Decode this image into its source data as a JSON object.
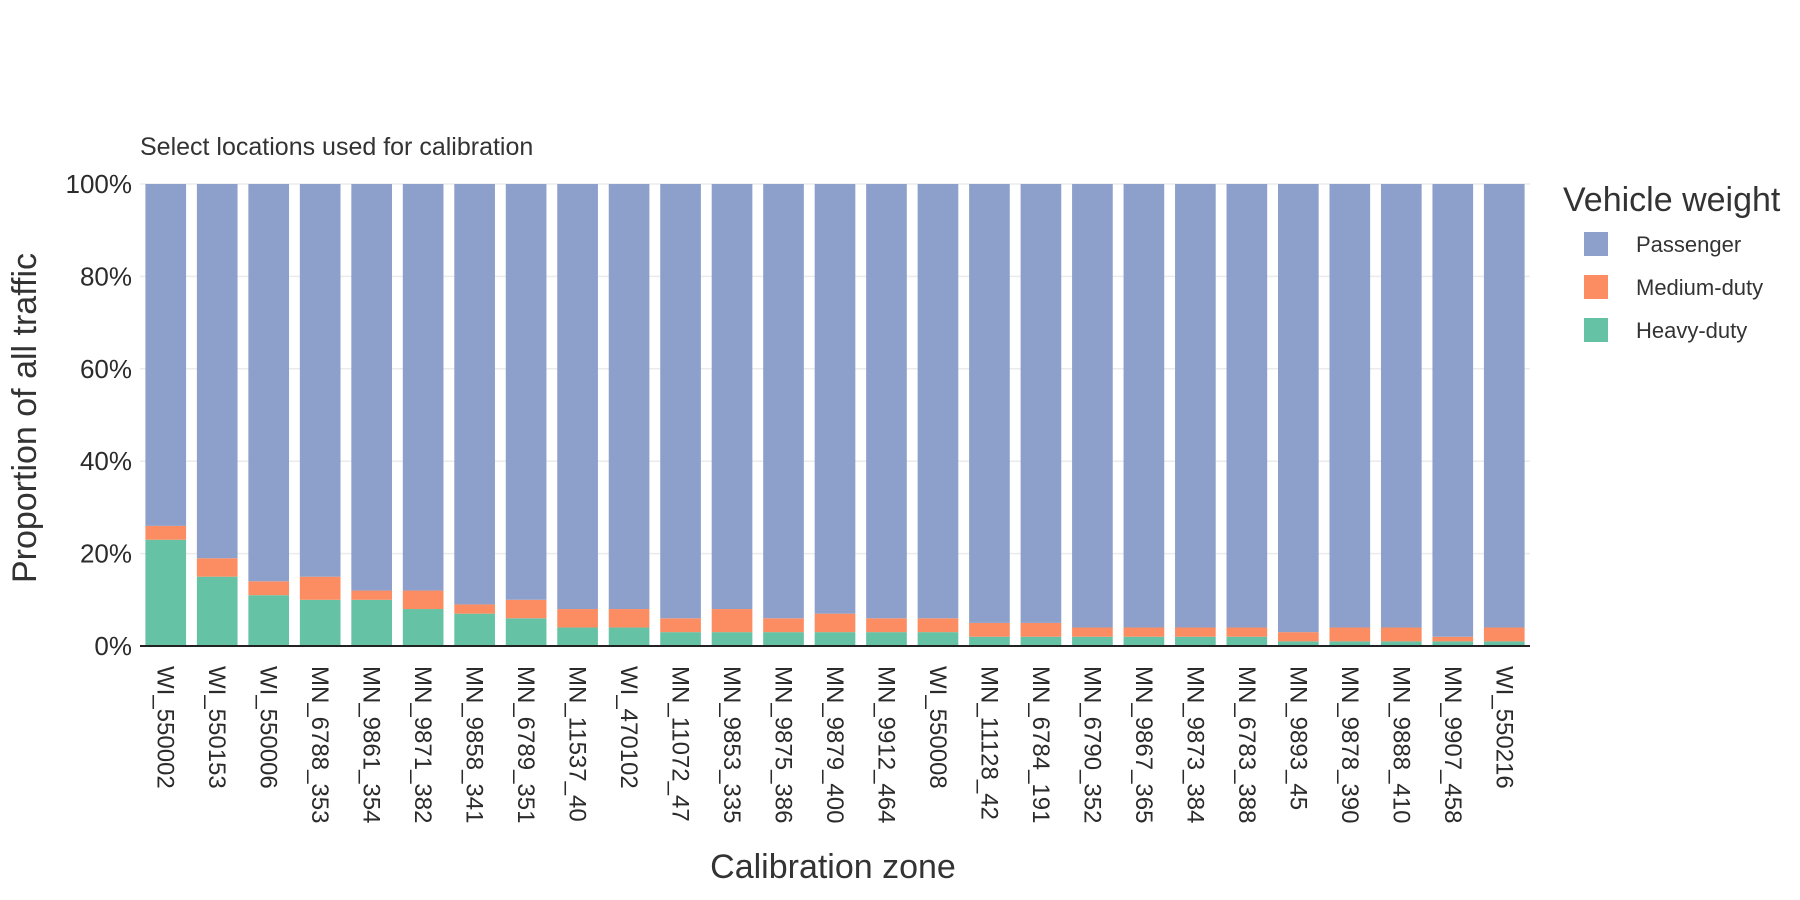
{
  "chart_data": {
    "type": "bar",
    "stacked": true,
    "subtitle": "Select locations used for calibration",
    "xlabel": "Calibration zone",
    "ylabel": "Proportion of all traffic",
    "ylim": [
      0,
      1
    ],
    "yticks": [
      "0%",
      "20%",
      "40%",
      "60%",
      "80%",
      "100%"
    ],
    "grid": true,
    "legend_position": "right",
    "legend_title": "Vehicle weight",
    "categories": [
      "WI_550002",
      "WI_550153",
      "WI_550006",
      "MN_6788_353",
      "MN_9861_354",
      "MN_9871_382",
      "MN_9858_341",
      "MN_6789_351",
      "MN_11537_40",
      "WI_470102",
      "MN_11072_47",
      "MN_9853_335",
      "MN_9875_386",
      "MN_9879_400",
      "MN_9912_464",
      "WI_550008",
      "MN_11128_42",
      "MN_6784_191",
      "MN_6790_352",
      "MN_9867_365",
      "MN_9873_384",
      "MN_6783_388",
      "MN_9893_45",
      "MN_9878_390",
      "MN_9888_410",
      "MN_9907_458",
      "WI_550216"
    ],
    "series": [
      {
        "name": "Heavy-duty",
        "color": "#66c2a5",
        "values": [
          0.23,
          0.15,
          0.11,
          0.1,
          0.1,
          0.08,
          0.07,
          0.06,
          0.04,
          0.04,
          0.03,
          0.03,
          0.03,
          0.03,
          0.03,
          0.03,
          0.02,
          0.02,
          0.02,
          0.02,
          0.02,
          0.02,
          0.01,
          0.01,
          0.01,
          0.01,
          0.01
        ]
      },
      {
        "name": "Medium-duty",
        "color": "#fc8d62",
        "values": [
          0.03,
          0.04,
          0.03,
          0.05,
          0.02,
          0.04,
          0.02,
          0.04,
          0.04,
          0.04,
          0.03,
          0.05,
          0.03,
          0.04,
          0.03,
          0.03,
          0.03,
          0.03,
          0.02,
          0.02,
          0.02,
          0.02,
          0.02,
          0.03,
          0.03,
          0.01,
          0.03
        ]
      },
      {
        "name": "Passenger",
        "color": "#8da0cb",
        "values": [
          0.74,
          0.81,
          0.86,
          0.85,
          0.88,
          0.88,
          0.91,
          0.9,
          0.92,
          0.92,
          0.94,
          0.92,
          0.94,
          0.93,
          0.94,
          0.94,
          0.95,
          0.95,
          0.96,
          0.96,
          0.96,
          0.96,
          0.97,
          0.96,
          0.96,
          0.98,
          0.96
        ]
      }
    ],
    "legend_order": [
      "Passenger",
      "Medium-duty",
      "Heavy-duty"
    ]
  }
}
